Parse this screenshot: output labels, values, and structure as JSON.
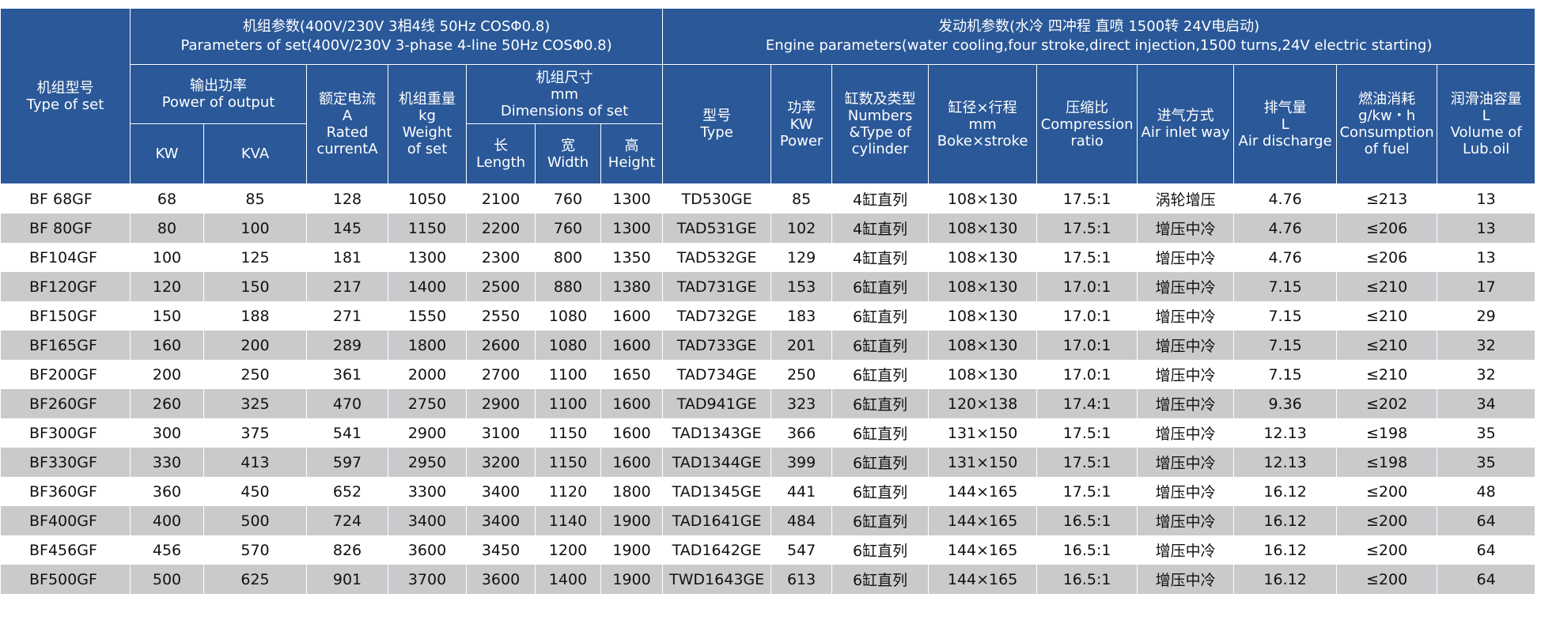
{
  "header": {
    "set_type": [
      "机组型号",
      "Type of set"
    ],
    "set_params": [
      "机组参数(400V/230V  3相4线  50Hz   COSΦ0.8)",
      "Parameters of set(400V/230V 3-phase 4-line 50Hz COSΦ0.8)"
    ],
    "engine_params": [
      "发动机参数(水冷  四冲程  直喷  1500转   24V电启动)",
      "Engine parameters(water cooling,four stroke,direct injection,1500 turns,24V electric starting)"
    ],
    "output_power": [
      "输出功率",
      "Power of output"
    ],
    "kw": [
      "KW"
    ],
    "kva": [
      "KVA"
    ],
    "rated_current": [
      "额定电流",
      "A",
      "Rated",
      "currentA"
    ],
    "weight": [
      "机组重量",
      "kg",
      "Weight",
      "of set"
    ],
    "dimensions": [
      "机组尺寸",
      "mm",
      "Dimensions of set"
    ],
    "length": [
      "长",
      "Length"
    ],
    "width": [
      "宽",
      "Width"
    ],
    "height": [
      "高",
      "Height"
    ],
    "engine_type": [
      "型号",
      "Type"
    ],
    "power": [
      "功率",
      "KW",
      "Power"
    ],
    "cylinders": [
      "缸数及类型",
      "Numbers",
      "&Type of",
      "cylinder"
    ],
    "bore_stroke": [
      "缸径×行程",
      "mm",
      "Boke×stroke"
    ],
    "compression": [
      "压缩比",
      "Compression",
      "ratio"
    ],
    "air_inlet": [
      "进气方式",
      "Air inlet way"
    ],
    "air_discharge": [
      "排气量",
      "L",
      "Air discharge"
    ],
    "fuel": [
      "燃油消耗",
      "g/kw・h",
      "Consumption",
      "of fuel"
    ],
    "lub_oil": [
      "润滑油容量",
      "L",
      "Volume of",
      "Lub.oil"
    ]
  },
  "rows": [
    [
      "BF 68GF",
      68,
      85,
      128,
      1050,
      2100,
      760,
      1300,
      "TD530GE",
      85,
      "4缸直列",
      "108×130",
      "17.5:1",
      "涡轮增压",
      4.76,
      "≤213",
      13
    ],
    [
      "BF 80GF",
      80,
      100,
      145,
      1150,
      2200,
      760,
      1300,
      "TAD531GE",
      102,
      "4缸直列",
      "108×130",
      "17.5:1",
      "增压中冷",
      4.76,
      "≤206",
      13
    ],
    [
      "BF104GF",
      100,
      125,
      181,
      1300,
      2300,
      800,
      1350,
      "TAD532GE",
      129,
      "4缸直列",
      "108×130",
      "17.5:1",
      "增压中冷",
      4.76,
      "≤206",
      13
    ],
    [
      "BF120GF",
      120,
      150,
      217,
      1400,
      2500,
      880,
      1380,
      "TAD731GE",
      153,
      "6缸直列",
      "108×130",
      "17.0:1",
      "增压中冷",
      7.15,
      "≤210",
      17
    ],
    [
      "BF150GF",
      150,
      188,
      271,
      1550,
      2550,
      1080,
      1600,
      "TAD732GE",
      183,
      "6缸直列",
      "108×130",
      "17.0:1",
      "增压中冷",
      7.15,
      "≤210",
      29
    ],
    [
      "BF165GF",
      160,
      200,
      289,
      1800,
      2600,
      1080,
      1600,
      "TAD733GE",
      201,
      "6缸直列",
      "108×130",
      "17.0:1",
      "增压中冷",
      7.15,
      "≤210",
      32
    ],
    [
      "BF200GF",
      200,
      250,
      361,
      2000,
      2700,
      1100,
      1650,
      "TAD734GE",
      250,
      "6缸直列",
      "108×130",
      "17.0:1",
      "增压中冷",
      7.15,
      "≤210",
      32
    ],
    [
      "BF260GF",
      260,
      325,
      470,
      2750,
      2900,
      1100,
      1600,
      "TAD941GE",
      323,
      "6缸直列",
      "120×138",
      "17.4:1",
      "增压中冷",
      9.36,
      "≤202",
      34
    ],
    [
      "BF300GF",
      300,
      375,
      541,
      2900,
      3100,
      1150,
      1600,
      "TAD1343GE",
      366,
      "6缸直列",
      "131×150",
      "17.5:1",
      "增压中冷",
      12.13,
      "≤198",
      35
    ],
    [
      "BF330GF",
      330,
      413,
      597,
      2950,
      3200,
      1150,
      1600,
      "TAD1344GE",
      399,
      "6缸直列",
      "131×150",
      "17.5:1",
      "增压中冷",
      12.13,
      "≤198",
      35
    ],
    [
      "BF360GF",
      360,
      450,
      652,
      3300,
      3400,
      1120,
      1800,
      "TAD1345GE",
      441,
      "6缸直列",
      "144×165",
      "17.5:1",
      "增压中冷",
      16.12,
      "≤200",
      48
    ],
    [
      "BF400GF",
      400,
      500,
      724,
      3400,
      3400,
      1140,
      1900,
      "TAD1641GE",
      484,
      "6缸直列",
      "144×165",
      "16.5:1",
      "增压中冷",
      16.12,
      "≤200",
      64
    ],
    [
      "BF456GF",
      456,
      570,
      826,
      3600,
      3450,
      1200,
      1900,
      "TAD1642GE",
      547,
      "6缸直列",
      "144×165",
      "16.5:1",
      "增压中冷",
      16.12,
      "≤200",
      64
    ],
    [
      "BF500GF",
      500,
      625,
      901,
      3700,
      3600,
      1400,
      1900,
      "TWD1643GE",
      613,
      "6缸直列",
      "144×165",
      "16.5:1",
      "增压中冷",
      16.12,
      "≤200",
      64
    ]
  ]
}
